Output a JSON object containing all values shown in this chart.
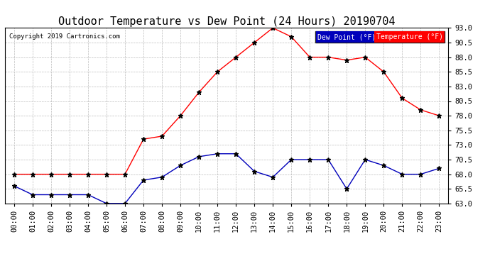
{
  "title": "Outdoor Temperature vs Dew Point (24 Hours) 20190704",
  "copyright": "Copyright 2019 Cartronics.com",
  "legend_dew": "Dew Point (°F)",
  "legend_temp": "Temperature (°F)",
  "hours": [
    "00:00",
    "01:00",
    "02:00",
    "03:00",
    "04:00",
    "05:00",
    "06:00",
    "07:00",
    "08:00",
    "09:00",
    "10:00",
    "11:00",
    "12:00",
    "13:00",
    "14:00",
    "15:00",
    "16:00",
    "17:00",
    "18:00",
    "19:00",
    "20:00",
    "21:00",
    "22:00",
    "23:00"
  ],
  "temperature": [
    68.0,
    68.0,
    68.0,
    68.0,
    68.0,
    68.0,
    68.0,
    74.0,
    74.5,
    78.0,
    82.0,
    85.5,
    88.0,
    90.5,
    93.0,
    91.5,
    88.0,
    88.0,
    87.5,
    88.0,
    85.5,
    81.0,
    79.0,
    78.0
  ],
  "dew_point": [
    66.0,
    64.5,
    64.5,
    64.5,
    64.5,
    63.0,
    63.0,
    67.0,
    67.5,
    69.5,
    71.0,
    71.5,
    71.5,
    68.5,
    67.5,
    70.5,
    70.5,
    70.5,
    65.5,
    70.5,
    69.5,
    68.0,
    68.0,
    69.0
  ],
  "ylim_min": 63.0,
  "ylim_max": 93.0,
  "yticks": [
    63.0,
    65.5,
    68.0,
    70.5,
    73.0,
    75.5,
    78.0,
    80.5,
    83.0,
    85.5,
    88.0,
    90.5,
    93.0
  ],
  "temp_color": "#FF0000",
  "dew_color": "#0000BB",
  "marker_color": "#000000",
  "background_color": "#FFFFFF",
  "grid_color": "#BBBBBB",
  "title_fontsize": 11,
  "tick_fontsize": 7.5,
  "copyright_fontsize": 6.5
}
